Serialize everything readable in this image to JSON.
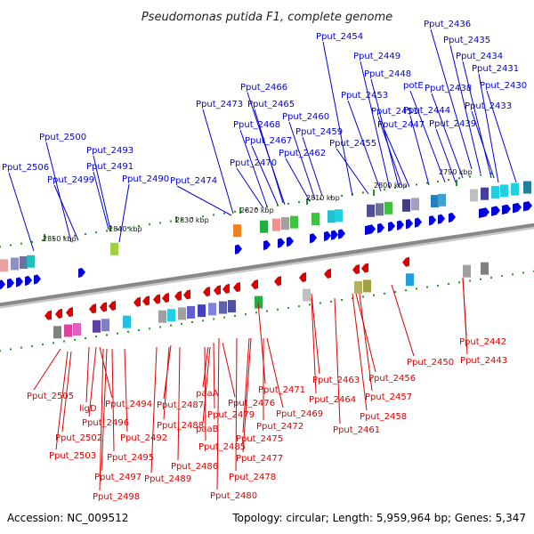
{
  "header": {
    "title": "Pseudomonas putida F1, complete genome"
  },
  "footer": {
    "accession": "Accession: NC_009512",
    "summary": "Topology: circular; Length: 5,959,964 bp; Genes: 5,347"
  },
  "colors": {
    "forward": "#0000dd",
    "reverse": "#dd0000",
    "backbone": "#888888",
    "tick": "#1f9a1f"
  },
  "scale_labels": [
    "2790 kbp",
    "2800 kbp",
    "2810 kbp",
    "2820 kbp",
    "2830 kbp",
    "2840 kbp",
    "2850 kbp"
  ],
  "forward_genes": [
    "Pput_2436",
    "Pput_2435",
    "Pput_2434",
    "Pput_2431",
    "Pput_2430",
    "Pput_2454",
    "Pput_2449",
    "Pput_2448",
    "Pput_2438",
    "Pput_2433",
    "potE",
    "Pput_2453",
    "Pput_2451",
    "Pput_2444",
    "Pput_2447",
    "Pput_2439",
    "Pput_2466",
    "Pput_2465",
    "Pput_2473",
    "Pput_2460",
    "Pput_2468",
    "Pput_2459",
    "Pput_2467",
    "Pput_2455",
    "Pput_2462",
    "Pput_2500",
    "Pput_2493",
    "Pput_2470",
    "Pput_2491",
    "Pput_2506",
    "Pput_2490",
    "Pput_2474",
    "Pput_2499"
  ],
  "reverse_genes": [
    "Pput_2442",
    "Pput_2443",
    "Pput_2450",
    "Pput_2463",
    "Pput_2456",
    "Pput_2471",
    "Pput_2464",
    "Pput_2457",
    "Pput_2505",
    "Pput_2494",
    "paaA",
    "Pput_2476",
    "Pput_2469",
    "Pput_2458",
    "ligD",
    "Pput_2496",
    "Pput_2487",
    "Pput_2479",
    "Pput_2472",
    "Pput_2461",
    "Pput_2502",
    "Pput_2492",
    "Pput_2488",
    "paaB",
    "Pput_2475",
    "Pput_2485",
    "Pput_2503",
    "Pput_2495",
    "Pput_2477",
    "Pput_2486",
    "Pput_2497",
    "Pput_2489",
    "Pput_2478",
    "Pput_2498",
    "Pput_2480"
  ]
}
